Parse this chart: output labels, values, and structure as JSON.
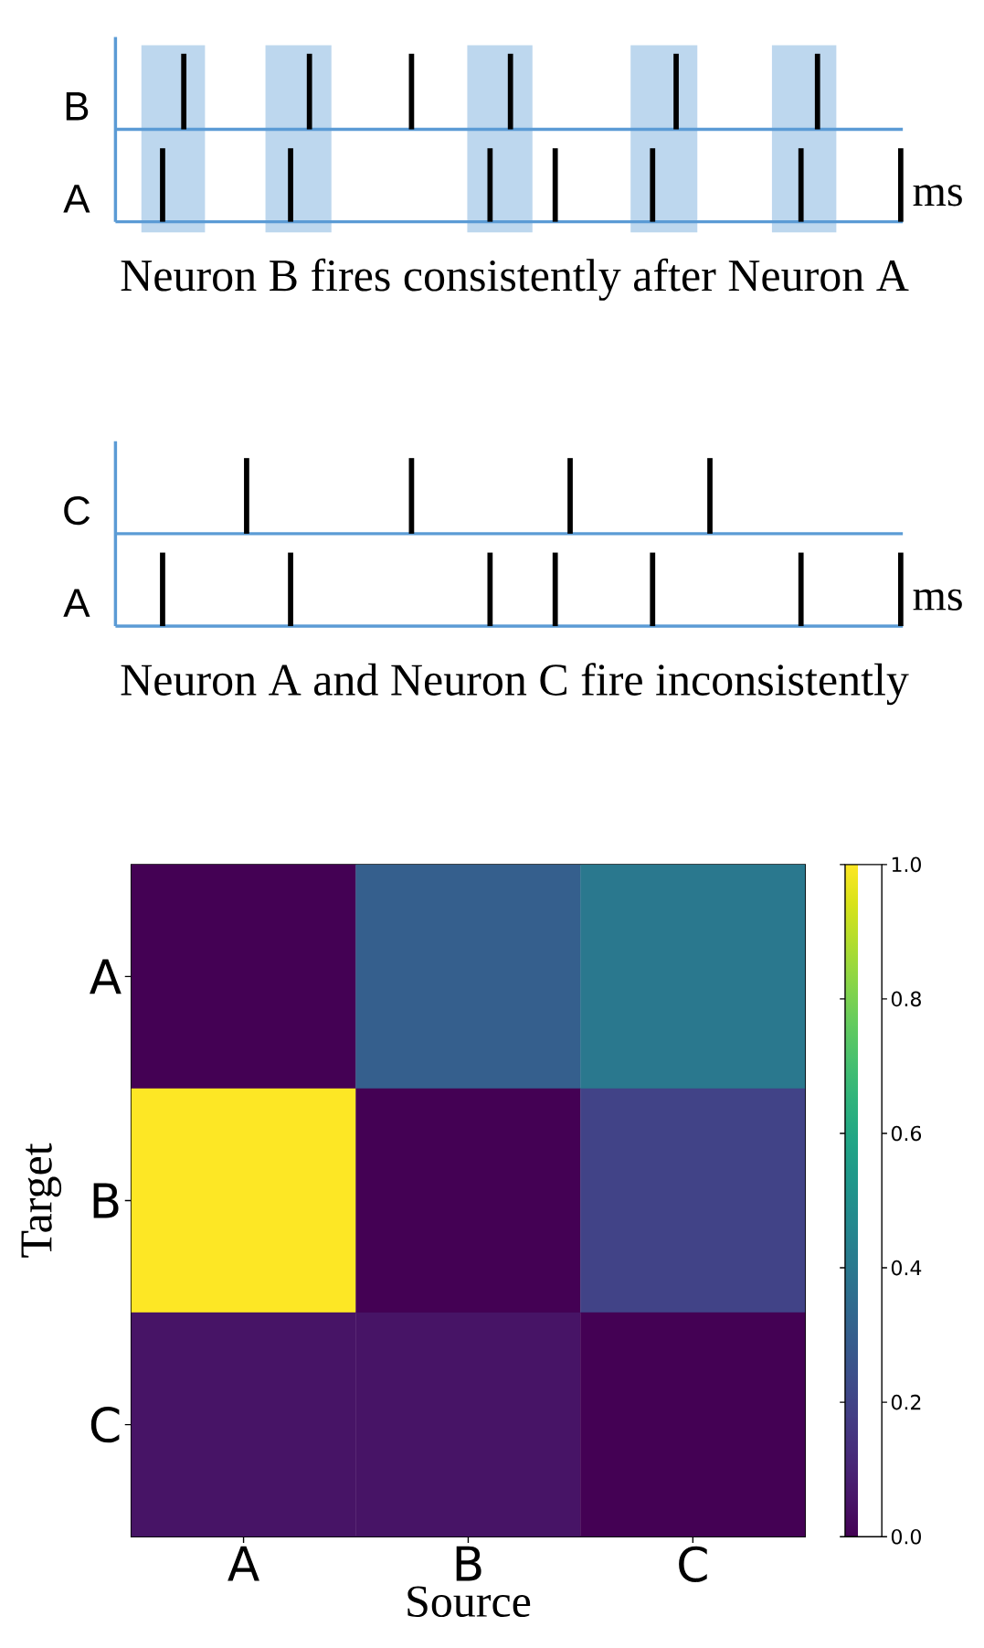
{
  "chart_data": [
    {
      "type": "other",
      "title": "Neuron B fires consistently after Neuron A",
      "annotations": [
        "B",
        "A",
        "ms"
      ]
    },
    {
      "type": "other",
      "title": "Neuron A and Neuron C fire inconsistently",
      "annotations": [
        "C",
        "A",
        "ms"
      ]
    },
    {
      "type": "heatmap",
      "categories": [
        "A",
        "B",
        "C"
      ],
      "y_categories": [
        "A",
        "B",
        "C"
      ],
      "xlabel": "Source",
      "ylabel": "Target",
      "cells": [
        [
          0.0,
          0.3,
          0.4
        ],
        [
          1.0,
          0.0,
          0.2
        ],
        [
          0.05,
          0.05,
          0.0
        ]
      ],
      "clim": [
        0,
        1
      ],
      "cticks": [
        {
          "value": 0,
          "label": "0.0"
        },
        {
          "value": 0.2,
          "label": "0.2"
        },
        {
          "value": 0.4,
          "label": "0.4"
        },
        {
          "value": 0.6,
          "label": "0.6"
        },
        {
          "value": 0.8,
          "label": "0.8"
        },
        {
          "value": 1.0,
          "label": "1.0"
        }
      ]
    }
  ]
}
